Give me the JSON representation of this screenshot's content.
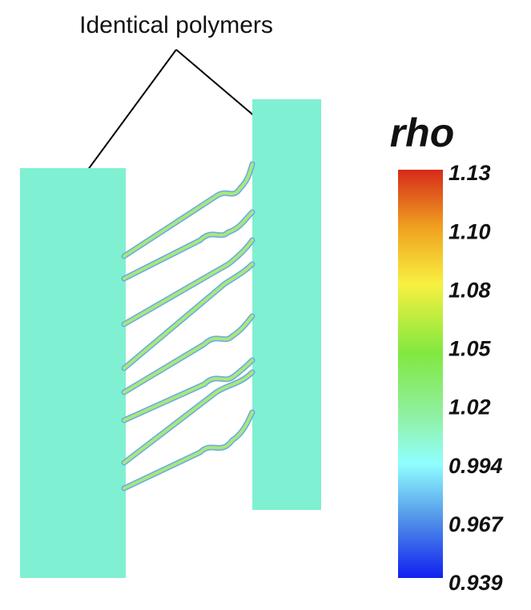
{
  "annotation": {
    "label": "Identical polymers"
  },
  "colorbar": {
    "title": "rho",
    "labels": [
      "1.13",
      "1.10",
      "1.08",
      "1.05",
      "1.02",
      "0.994",
      "0.967",
      "0.939"
    ]
  }
}
